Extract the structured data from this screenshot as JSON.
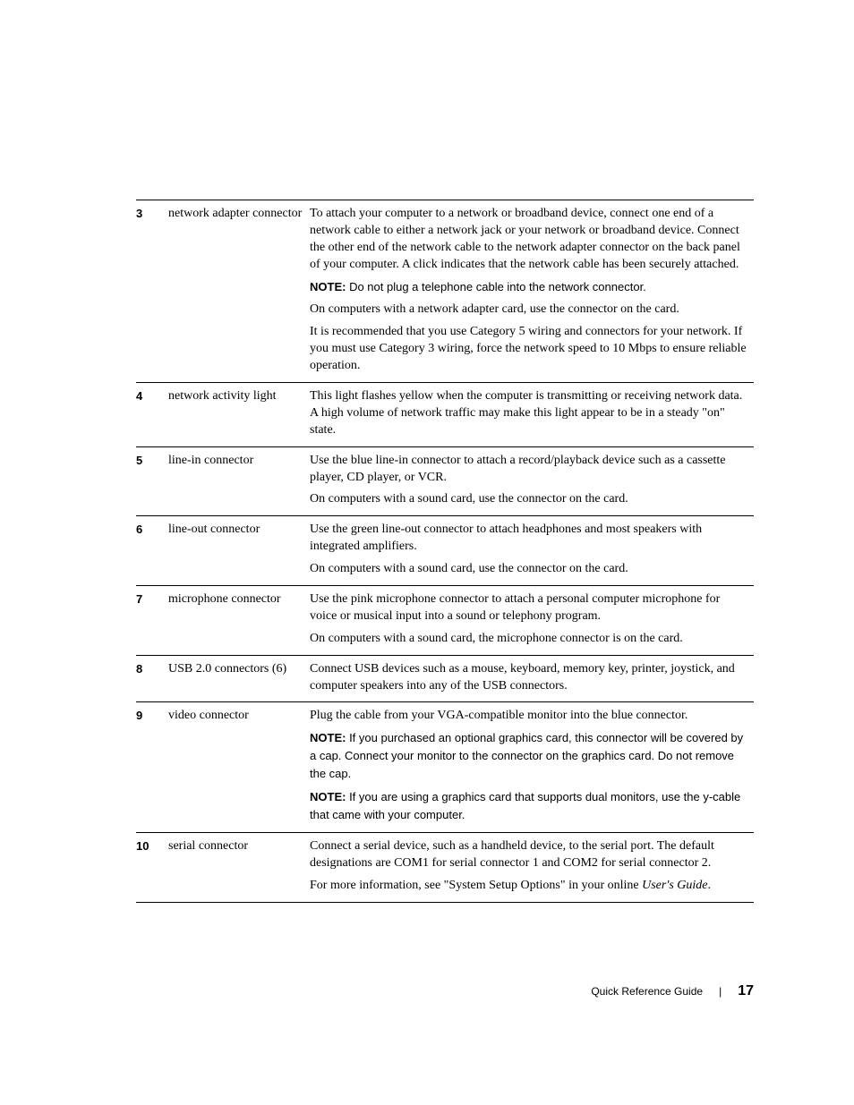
{
  "rows": [
    {
      "num": "3",
      "name": "network adapter connector",
      "paras": [
        {
          "type": "text",
          "text": "To attach your computer to a network or broadband device, connect one end of a network cable to either a network jack or your network or broadband device. Connect the other end of the network cable to the network adapter connector on the back panel of your computer. A click indicates that the network cable has been securely attached."
        },
        {
          "type": "note",
          "text": "Do not plug a telephone cable into the network connector."
        },
        {
          "type": "text",
          "text": "On computers with a network adapter card, use the connector on the card."
        },
        {
          "type": "text",
          "text": "It is recommended that you use Category 5 wiring and connectors for your network. If you must use Category 3 wiring, force the network speed to 10 Mbps to ensure reliable operation."
        }
      ]
    },
    {
      "num": "4",
      "name": "network activity light",
      "paras": [
        {
          "type": "text",
          "text": "This light flashes yellow when the computer is transmitting or receiving network data. A high volume of network traffic may make this light appear to be in a steady \"on\" state."
        }
      ]
    },
    {
      "num": "5",
      "name": "line-in connector",
      "paras": [
        {
          "type": "text",
          "text": "Use the blue line-in connector to attach a record/playback device such as a cassette player, CD player, or VCR."
        },
        {
          "type": "text",
          "text": "On computers with a sound card, use the connector on the card."
        }
      ]
    },
    {
      "num": "6",
      "name": "line-out connector",
      "paras": [
        {
          "type": "text",
          "text": "Use the green line-out connector to attach headphones and most speakers with integrated amplifiers."
        },
        {
          "type": "text",
          "text": "On computers with a sound card, use the connector on the card."
        }
      ]
    },
    {
      "num": "7",
      "name": "microphone connector",
      "paras": [
        {
          "type": "text",
          "text": "Use the pink microphone connector to attach a personal computer microphone for voice or musical input into a sound or telephony program."
        },
        {
          "type": "text",
          "text": "On computers with a sound card, the microphone connector is on the card."
        }
      ]
    },
    {
      "num": "8",
      "name": "USB 2.0 connectors (6)",
      "paras": [
        {
          "type": "text",
          "text": "Connect USB devices such as a mouse, keyboard, memory key, printer, joystick, and computer speakers into any of the USB connectors."
        }
      ]
    },
    {
      "num": "9",
      "name": "video connector",
      "paras": [
        {
          "type": "text",
          "text": "Plug the cable from your VGA-compatible monitor into the blue connector."
        },
        {
          "type": "note",
          "text": "If you purchased an optional graphics card, this connector will be covered by a cap. Connect your monitor to the connector on the graphics card. Do not remove the cap."
        },
        {
          "type": "note",
          "text": "If you are using a graphics card that supports dual monitors, use the y-cable that came with your computer."
        }
      ]
    },
    {
      "num": "10",
      "name": "serial connector",
      "paras": [
        {
          "type": "text",
          "text": "Connect a serial device, such as a handheld device, to the serial port. The default designations are COM1 for serial connector 1 and COM2 for serial connector 2."
        },
        {
          "type": "text-italic-tail",
          "text": "For more information, see \"System Setup Options\" in your online ",
          "italic": "User's Guide",
          "tail": "."
        }
      ]
    }
  ],
  "note_label": "NOTE:",
  "footer": {
    "title": "Quick Reference Guide",
    "page": "17",
    "divider": "|"
  }
}
